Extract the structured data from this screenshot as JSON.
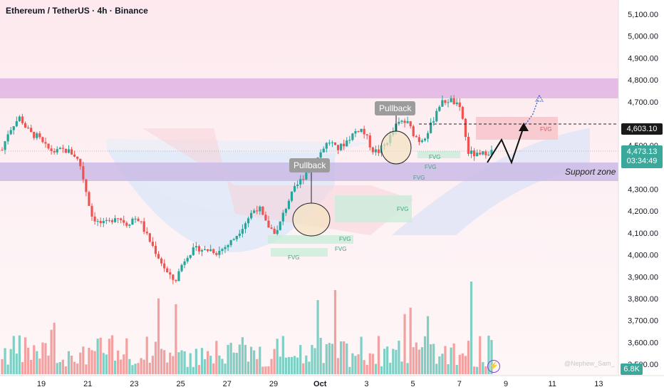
{
  "header": {
    "title": "Ethereum / TetherUS · 4h · Binance"
  },
  "price_axis": {
    "ticks": [
      "5,100.00",
      "5,000.00",
      "4,900.00",
      "4,800.00",
      "4,700.00",
      "4,500.00",
      "4,300.00",
      "4,200.00",
      "4,100.00",
      "4,000.00",
      "3,900.00",
      "3,800.00",
      "3,700.00",
      "3,600.00",
      "3,500.00"
    ],
    "current_price_label": "4,603.10",
    "last_price_label": "4,473.13",
    "countdown": "03:34:49",
    "volume_label": "6.8K"
  },
  "time_axis": {
    "ticks": [
      "19",
      "21",
      "23",
      "25",
      "27",
      "29",
      "Oct",
      "3",
      "5",
      "7",
      "9",
      "11",
      "13"
    ]
  },
  "annotations": {
    "pullback_1": "Pullback",
    "pullback_2": "Pullback",
    "support_zone": "Support zone",
    "fvg_label": "FVG",
    "watermark": "@Nephew_Sam_"
  },
  "chart_data": {
    "type": "candlestick",
    "title": "Ethereum / TetherUS · 4h · Binance",
    "ylim": [
      3500,
      5150
    ],
    "price_ticks": [
      5100,
      5000,
      4900,
      4800,
      4700,
      4500,
      4300,
      4200,
      4100,
      4000,
      3900,
      3800,
      3700,
      3600,
      3500
    ],
    "x_ticks": [
      "19",
      "21",
      "23",
      "25",
      "27",
      "29",
      "Oct",
      "3",
      "5",
      "7",
      "9",
      "11",
      "13"
    ],
    "current_line_price": 4603.1,
    "last_price": 4473.13,
    "zones": {
      "resistance": [
        4720,
        4810
      ],
      "support": [
        4360,
        4440
      ]
    },
    "close_path": [
      4480,
      4560,
      4600,
      4630,
      4580,
      4550,
      4540,
      4500,
      4480,
      4470,
      4480,
      4475,
      4460,
      4420,
      4300,
      4180,
      4150,
      4140,
      4150,
      4180,
      4160,
      4140,
      4170,
      4160,
      4100,
      4050,
      4000,
      3950,
      3900,
      3880,
      3950,
      4000,
      4020,
      4030,
      4020,
      4025,
      4010,
      4030,
      4050,
      4080,
      4120,
      4160,
      4200,
      4220,
      4150,
      4120,
      4100,
      4180,
      4250,
      4300,
      4340,
      4380,
      4400,
      4450,
      4500,
      4520,
      4480,
      4500,
      4530,
      4560,
      4580,
      4540,
      4480,
      4470,
      4500,
      4540,
      4590,
      4610,
      4600,
      4550,
      4520,
      4550,
      4600,
      4680,
      4700,
      4710,
      4690,
      4650,
      4470,
      4460,
      4450,
      4470,
      4473
    ]
  }
}
